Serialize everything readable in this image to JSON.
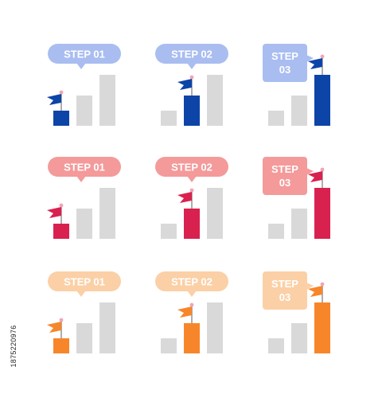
{
  "colors": {
    "gray": "#d9d9d9",
    "rows": [
      {
        "theme": "blue",
        "bubble": "#a9bdf0",
        "accent": "#0d44a7",
        "text": "#ffffff"
      },
      {
        "theme": "red",
        "bubble": "#f49a9a",
        "accent": "#d9214f",
        "text": "#ffffff"
      },
      {
        "theme": "orange",
        "bubble": "#fbd0a6",
        "accent": "#f7862a",
        "text": "#ffffff"
      }
    ]
  },
  "icons": [
    {
      "label": "STEP 01",
      "step": 1
    },
    {
      "label": "STEP 02",
      "step": 2
    },
    {
      "label_lines": [
        "STEP",
        "03"
      ],
      "step": 3
    }
  ],
  "stock_id": "1875220976"
}
